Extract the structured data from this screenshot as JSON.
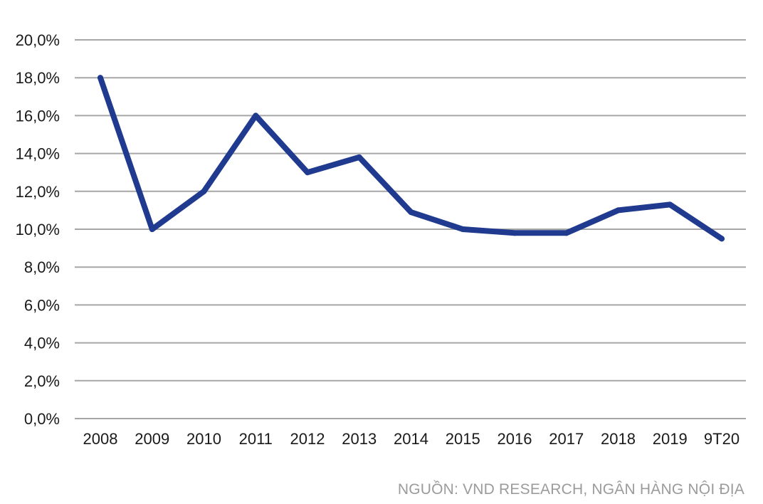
{
  "chart_data": {
    "type": "line",
    "title": "",
    "xlabel": "",
    "ylabel": "",
    "categories": [
      "2008",
      "2009",
      "2010",
      "2011",
      "2012",
      "2013",
      "2014",
      "2015",
      "2016",
      "2017",
      "2018",
      "2019",
      "9T20"
    ],
    "series": [
      {
        "values": [
          18.0,
          10.0,
          12.0,
          16.0,
          13.0,
          13.8,
          10.9,
          10.0,
          9.8,
          9.8,
          11.0,
          11.3,
          9.5
        ]
      }
    ],
    "ylim": [
      0,
      20
    ],
    "yticks": [
      "0,0%",
      "2,0%",
      "4,0%",
      "6,0%",
      "8,0%",
      "10,0%",
      "12,0%",
      "14,0%",
      "16,0%",
      "18,0%",
      "20,0%"
    ],
    "grid": true,
    "legend": "none",
    "line_color": "#1f3a8f"
  },
  "source_note": "NGUỒN: VND RESEARCH, NGÂN HÀNG NỘI ĐỊA"
}
